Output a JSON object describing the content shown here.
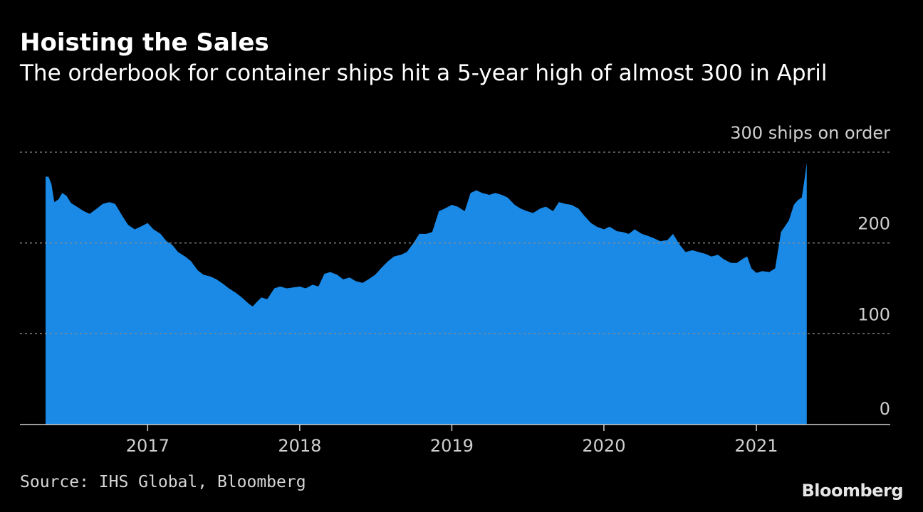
{
  "header": {
    "title": "Hoisting the Sales",
    "subtitle": "The orderbook for container ships hit a 5-year high of almost 300 in April"
  },
  "footer": {
    "source": "Source: IHS Global, Bloomberg",
    "brand": "Bloomberg"
  },
  "colors": {
    "background": "#000000",
    "area_fill": "#1a8ae6",
    "text": "#ffffff",
    "grid": "#8a8a8a"
  },
  "chart_data": {
    "type": "area",
    "title": "Hoisting the Sales",
    "subtitle": "The orderbook for container ships hit a 5-year high of almost 300 in April",
    "ylabel": "",
    "xlabel": "",
    "y_axis_position": "right",
    "ylim": [
      0,
      300
    ],
    "xlim": [
      "2016-05-01",
      "2021-12-31"
    ],
    "grid": true,
    "y_ticks": [
      {
        "value": 0,
        "label": "0"
      },
      {
        "value": 100,
        "label": "100"
      },
      {
        "value": 200,
        "label": "200"
      },
      {
        "value": 300,
        "label": "300 ships on order"
      }
    ],
    "x_ticks": [
      {
        "value": "2017-01-01",
        "label": "2017"
      },
      {
        "value": "2018-01-01",
        "label": "2018"
      },
      {
        "value": "2019-01-01",
        "label": "2019"
      },
      {
        "value": "2020-01-01",
        "label": "2020"
      },
      {
        "value": "2021-01-01",
        "label": "2021"
      }
    ],
    "series": [
      {
        "values": [
          [
            "2016-05-01",
            273
          ],
          [
            "2016-05-08",
            273
          ],
          [
            "2016-05-15",
            265
          ],
          [
            "2016-05-22",
            245
          ],
          [
            "2016-06-01",
            248
          ],
          [
            "2016-06-10",
            255
          ],
          [
            "2016-06-20",
            252
          ],
          [
            "2016-07-01",
            244
          ],
          [
            "2016-07-15",
            240
          ],
          [
            "2016-08-01",
            235
          ],
          [
            "2016-08-15",
            232
          ],
          [
            "2016-09-01",
            238
          ],
          [
            "2016-09-15",
            243
          ],
          [
            "2016-10-01",
            245
          ],
          [
            "2016-10-15",
            243
          ],
          [
            "2016-11-01",
            230
          ],
          [
            "2016-11-15",
            220
          ],
          [
            "2016-12-01",
            215
          ],
          [
            "2016-12-15",
            218
          ],
          [
            "2017-01-01",
            222
          ],
          [
            "2017-01-15",
            215
          ],
          [
            "2017-02-01",
            210
          ],
          [
            "2017-02-15",
            202
          ],
          [
            "2017-03-01",
            198
          ],
          [
            "2017-03-15",
            190
          ],
          [
            "2017-04-01",
            185
          ],
          [
            "2017-04-15",
            180
          ],
          [
            "2017-05-01",
            170
          ],
          [
            "2017-05-15",
            165
          ],
          [
            "2017-06-01",
            163
          ],
          [
            "2017-06-15",
            160
          ],
          [
            "2017-07-01",
            155
          ],
          [
            "2017-07-15",
            150
          ],
          [
            "2017-08-01",
            145
          ],
          [
            "2017-08-15",
            140
          ],
          [
            "2017-09-01",
            133
          ],
          [
            "2017-09-10",
            130
          ],
          [
            "2017-09-20",
            135
          ],
          [
            "2017-10-01",
            140
          ],
          [
            "2017-10-15",
            138
          ],
          [
            "2017-11-01",
            150
          ],
          [
            "2017-11-15",
            152
          ],
          [
            "2017-12-01",
            150
          ],
          [
            "2018-01-01",
            152
          ],
          [
            "2018-01-15",
            150
          ],
          [
            "2018-02-01",
            154
          ],
          [
            "2018-02-15",
            152
          ],
          [
            "2018-03-01",
            166
          ],
          [
            "2018-03-15",
            168
          ],
          [
            "2018-04-01",
            165
          ],
          [
            "2018-04-15",
            160
          ],
          [
            "2018-05-01",
            162
          ],
          [
            "2018-05-15",
            158
          ],
          [
            "2018-06-01",
            156
          ],
          [
            "2018-06-15",
            160
          ],
          [
            "2018-07-01",
            165
          ],
          [
            "2018-07-15",
            172
          ],
          [
            "2018-08-01",
            180
          ],
          [
            "2018-08-15",
            185
          ],
          [
            "2018-09-01",
            187
          ],
          [
            "2018-09-15",
            190
          ],
          [
            "2018-10-01",
            200
          ],
          [
            "2018-10-15",
            210
          ],
          [
            "2018-11-01",
            210
          ],
          [
            "2018-11-15",
            212
          ],
          [
            "2018-12-01",
            235
          ],
          [
            "2018-12-15",
            238
          ],
          [
            "2019-01-01",
            242
          ],
          [
            "2019-01-15",
            240
          ],
          [
            "2019-02-01",
            235
          ],
          [
            "2019-02-15",
            255
          ],
          [
            "2019-03-01",
            258
          ],
          [
            "2019-03-15",
            255
          ],
          [
            "2019-04-01",
            253
          ],
          [
            "2019-04-15",
            255
          ],
          [
            "2019-05-01",
            253
          ],
          [
            "2019-05-15",
            250
          ],
          [
            "2019-06-01",
            242
          ],
          [
            "2019-06-15",
            238
          ],
          [
            "2019-07-01",
            235
          ],
          [
            "2019-07-15",
            233
          ],
          [
            "2019-08-01",
            238
          ],
          [
            "2019-08-15",
            240
          ],
          [
            "2019-09-01",
            235
          ],
          [
            "2019-09-15",
            245
          ],
          [
            "2019-10-01",
            243
          ],
          [
            "2019-10-15",
            242
          ],
          [
            "2019-11-01",
            238
          ],
          [
            "2019-11-15",
            230
          ],
          [
            "2019-12-01",
            222
          ],
          [
            "2019-12-15",
            218
          ],
          [
            "2020-01-01",
            215
          ],
          [
            "2020-01-15",
            218
          ],
          [
            "2020-02-01",
            213
          ],
          [
            "2020-02-15",
            212
          ],
          [
            "2020-03-01",
            210
          ],
          [
            "2020-03-15",
            215
          ],
          [
            "2020-04-01",
            210
          ],
          [
            "2020-04-15",
            208
          ],
          [
            "2020-05-01",
            205
          ],
          [
            "2020-05-15",
            202
          ],
          [
            "2020-06-01",
            203
          ],
          [
            "2020-06-15",
            210
          ],
          [
            "2020-07-01",
            198
          ],
          [
            "2020-07-15",
            190
          ],
          [
            "2020-08-01",
            192
          ],
          [
            "2020-08-15",
            190
          ],
          [
            "2020-09-01",
            188
          ],
          [
            "2020-09-15",
            185
          ],
          [
            "2020-10-01",
            187
          ],
          [
            "2020-10-15",
            182
          ],
          [
            "2020-11-01",
            178
          ],
          [
            "2020-11-15",
            178
          ],
          [
            "2020-12-01",
            183
          ],
          [
            "2020-12-10",
            185
          ],
          [
            "2020-12-20",
            172
          ],
          [
            "2021-01-01",
            167
          ],
          [
            "2021-01-15",
            169
          ],
          [
            "2021-02-01",
            168
          ],
          [
            "2021-02-15",
            172
          ],
          [
            "2021-03-01",
            212
          ],
          [
            "2021-03-10",
            218
          ],
          [
            "2021-03-20",
            225
          ],
          [
            "2021-04-01",
            242
          ],
          [
            "2021-04-10",
            247
          ],
          [
            "2021-04-20",
            250
          ],
          [
            "2021-04-25",
            265
          ],
          [
            "2021-05-02",
            288
          ]
        ]
      }
    ]
  }
}
